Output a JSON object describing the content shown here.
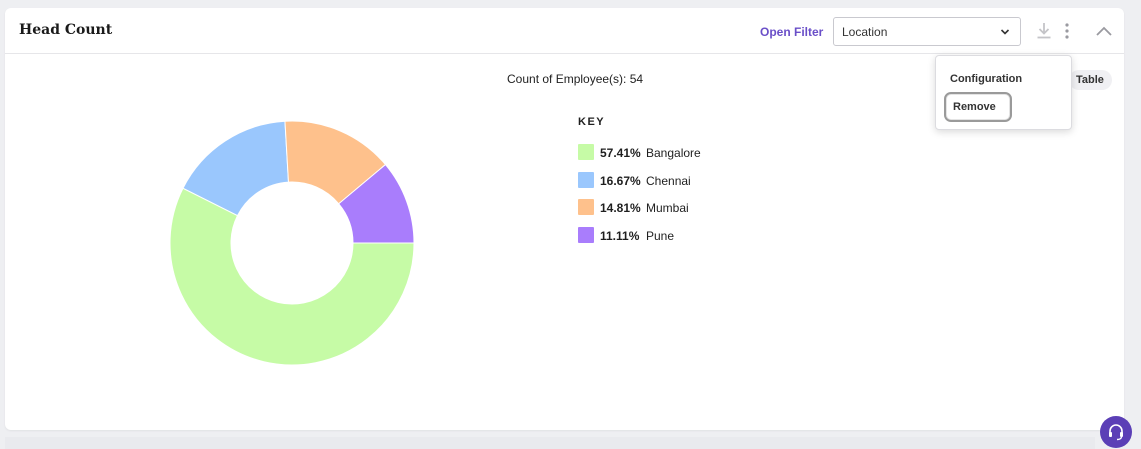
{
  "widget": {
    "title": "Head Count",
    "open_filter_label": "Open Filter",
    "filter_select_value": "Location",
    "count_label": "Count of Employee(s): 54",
    "table_toggle_label": "Table"
  },
  "menu": {
    "items": [
      "Configuration",
      "Remove"
    ]
  },
  "legend": {
    "title": "KEY"
  },
  "icons": {
    "download": "download-icon",
    "more": "kebab-icon",
    "collapse": "chevron-up-icon",
    "support": "headset-icon"
  },
  "chart_data": {
    "type": "pie",
    "donut": true,
    "total": 54,
    "categories": [
      "Bangalore",
      "Chennai",
      "Mumbai",
      "Pune"
    ],
    "values": [
      57.41,
      16.67,
      14.81,
      11.11
    ],
    "labels": [
      "57.41%",
      "16.67%",
      "14.81%",
      "11.11%"
    ],
    "colors": [
      "#c6fba6",
      "#9ac7fd",
      "#fec18c",
      "#a97dfc"
    ],
    "legend_position": "right"
  }
}
